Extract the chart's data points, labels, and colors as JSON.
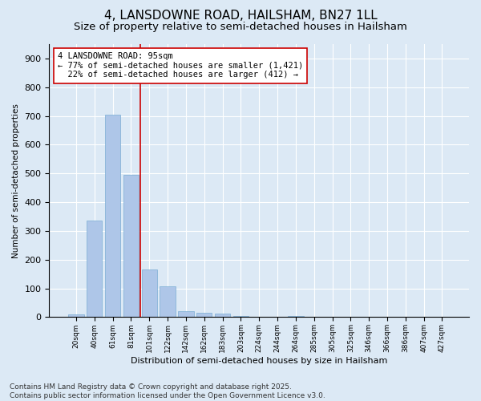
{
  "title_line1": "4, LANSDOWNE ROAD, HAILSHAM, BN27 1LL",
  "title_line2": "Size of property relative to semi-detached houses in Hailsham",
  "xlabel": "Distribution of semi-detached houses by size in Hailsham",
  "ylabel": "Number of semi-detached properties",
  "categories": [
    "20sqm",
    "40sqm",
    "61sqm",
    "81sqm",
    "101sqm",
    "122sqm",
    "142sqm",
    "162sqm",
    "183sqm",
    "203sqm",
    "224sqm",
    "244sqm",
    "264sqm",
    "285sqm",
    "305sqm",
    "325sqm",
    "346sqm",
    "366sqm",
    "386sqm",
    "407sqm",
    "427sqm"
  ],
  "values": [
    10,
    335,
    705,
    495,
    165,
    107,
    22,
    14,
    13,
    5,
    0,
    0,
    5,
    0,
    0,
    0,
    0,
    0,
    0,
    0,
    0
  ],
  "bar_color": "#aec6e8",
  "bar_edge_color": "#7aadd4",
  "vline_color": "#cc0000",
  "annotation_text": "4 LANSDOWNE ROAD: 95sqm\n← 77% of semi-detached houses are smaller (1,421)\n  22% of semi-detached houses are larger (412) →",
  "annotation_box_color": "#ffffff",
  "annotation_box_edge_color": "#cc0000",
  "ylim": [
    0,
    950
  ],
  "yticks": [
    0,
    100,
    200,
    300,
    400,
    500,
    600,
    700,
    800,
    900
  ],
  "background_color": "#dce9f5",
  "plot_bg_color": "#dce9f5",
  "footer_text": "Contains HM Land Registry data © Crown copyright and database right 2025.\nContains public sector information licensed under the Open Government Licence v3.0.",
  "title_fontsize": 11,
  "subtitle_fontsize": 9.5,
  "annotation_fontsize": 7.5,
  "footer_fontsize": 6.5,
  "ylabel_fontsize": 7.5,
  "xlabel_fontsize": 8.0,
  "ytick_fontsize": 8.0,
  "xtick_fontsize": 6.5
}
